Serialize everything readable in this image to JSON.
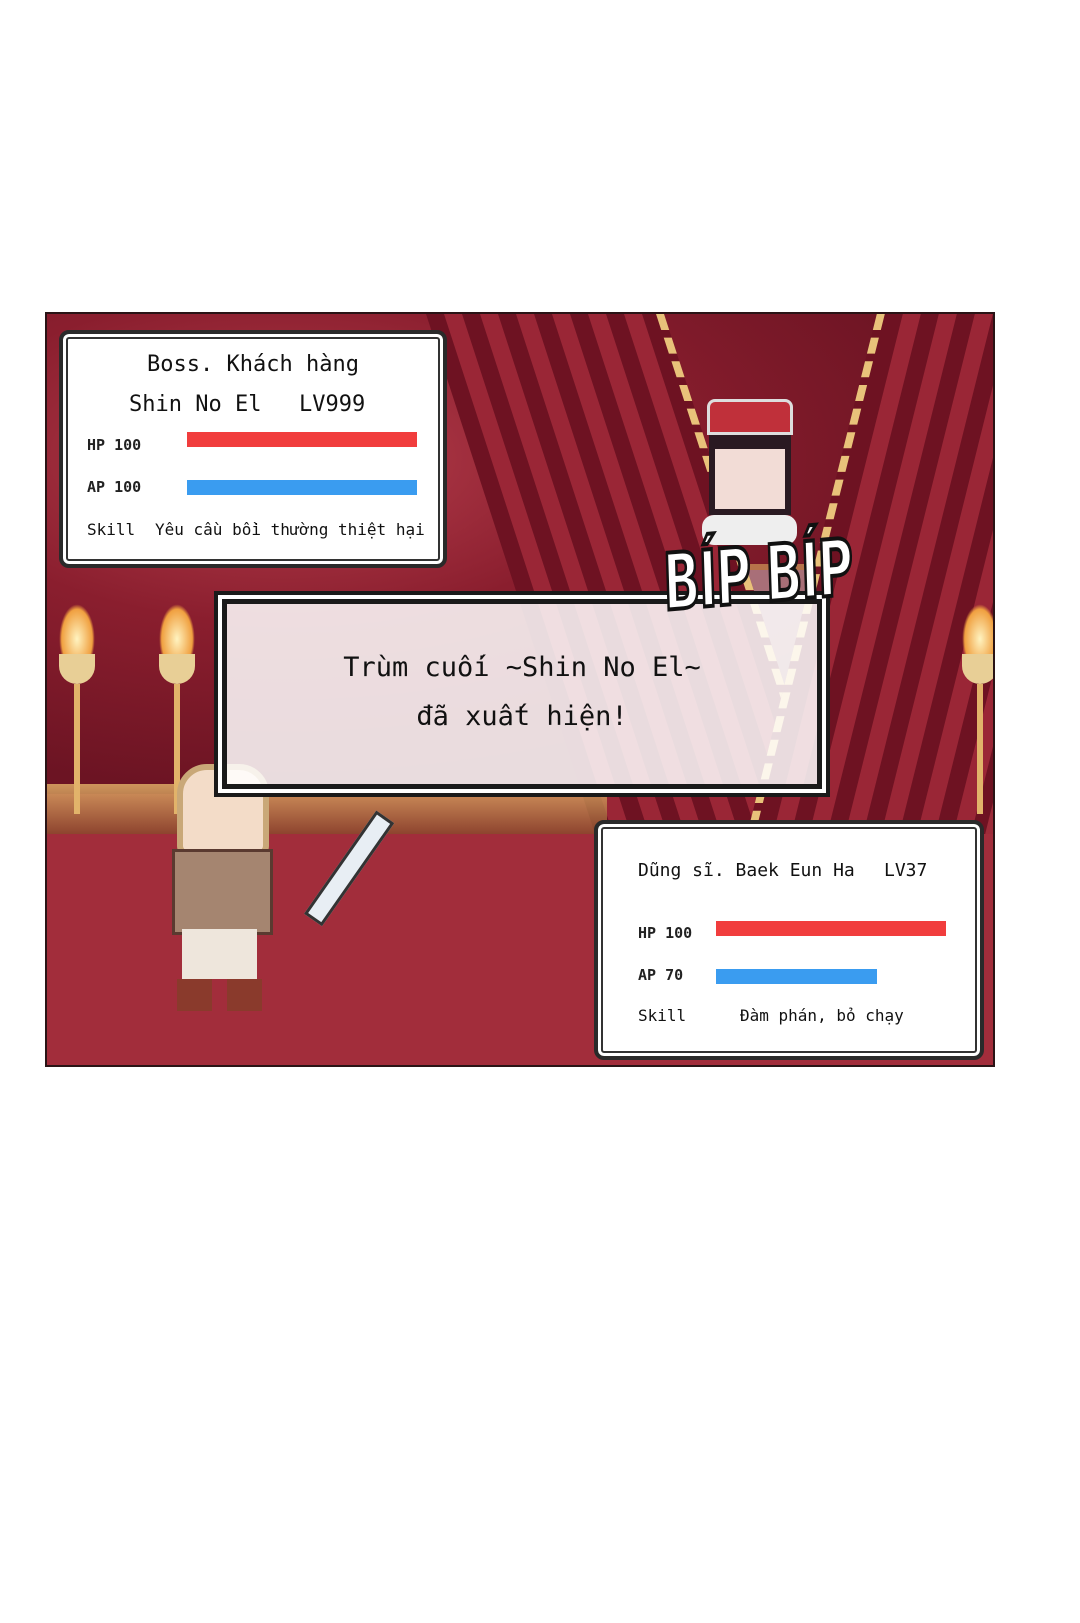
{
  "boss_panel": {
    "title": "Boss. Khách hàng",
    "name": "Shin No El",
    "level": "LV999",
    "hp_label": "HP 100",
    "hp": 100,
    "ap_label": "AP 100",
    "ap": 100,
    "skill_label": "Skill",
    "skill": "Yêu cầu bồi thường thiệt hại"
  },
  "dialog": {
    "line1": "Trùm cuối ~Shin No El~",
    "line2": "đã xuất hiện!"
  },
  "sfx": "BÍP BÍP",
  "hero_panel": {
    "title": "Dũng sĩ. Baek Eun Ha",
    "level": "LV37",
    "hp_label": "HP 100",
    "hp": 100,
    "ap_label": "AP 70",
    "ap": 70,
    "skill_label": "Skill",
    "skill": "Đàm phán, bỏ chạy"
  },
  "colors": {
    "hp": "#f13d3d",
    "ap": "#3a9cf0",
    "scene": "#9b2a38"
  }
}
